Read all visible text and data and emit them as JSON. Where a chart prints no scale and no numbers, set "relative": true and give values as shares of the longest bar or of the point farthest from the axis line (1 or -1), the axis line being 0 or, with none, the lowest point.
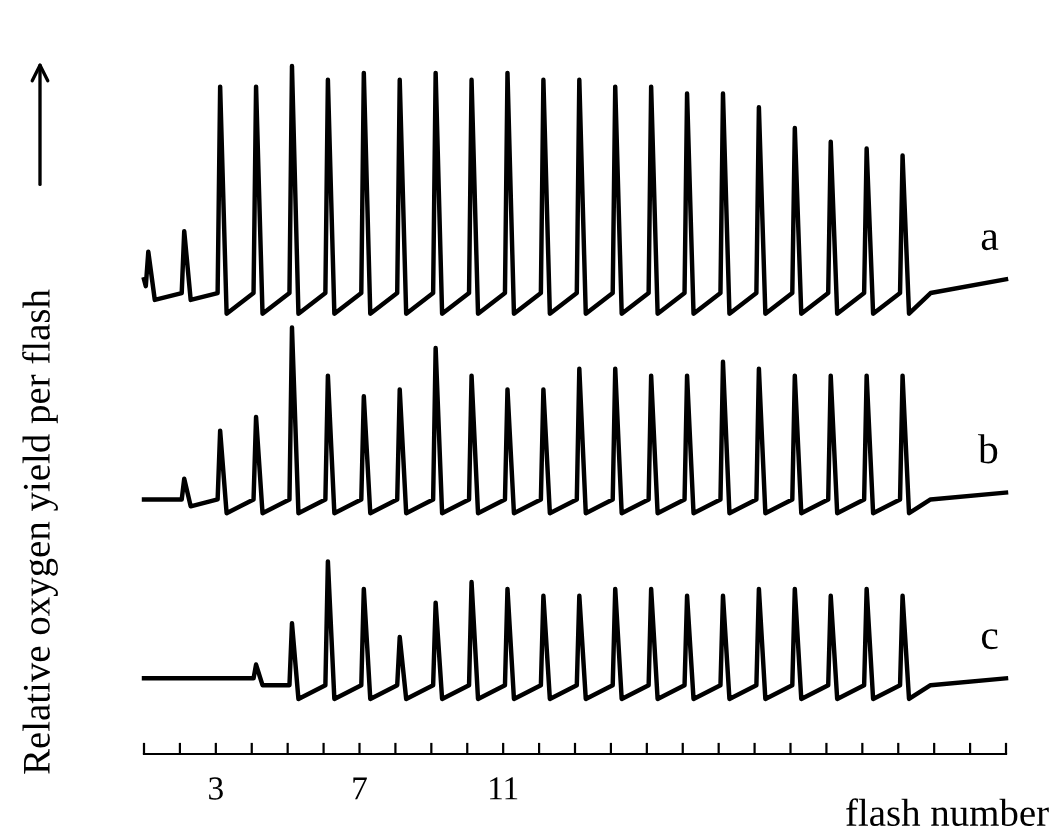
{
  "chart_data": {
    "type": "line",
    "relative": true,
    "ylabel": "Relative oxygen yield per flash",
    "xlabel": "flash number",
    "xlim": [
      1,
      25
    ],
    "xticks": [
      {
        "value": 1,
        "label": null
      },
      {
        "value": 2,
        "label": null
      },
      3,
      {
        "value": 4,
        "label": null
      },
      {
        "value": 5,
        "label": null
      },
      {
        "value": 6,
        "label": null
      },
      7,
      {
        "value": 8,
        "label": null
      },
      {
        "value": 9,
        "label": null
      },
      {
        "value": 10,
        "label": null
      },
      11,
      {
        "value": 12,
        "label": null
      },
      {
        "value": 13,
        "label": null
      },
      {
        "value": 14,
        "label": null
      },
      {
        "value": 15,
        "label": null
      },
      {
        "value": 16,
        "label": null
      },
      {
        "value": 17,
        "label": null
      },
      {
        "value": 18,
        "label": null
      },
      {
        "value": 19,
        "label": null
      },
      {
        "value": 20,
        "label": null
      },
      {
        "value": 21,
        "label": null
      },
      {
        "value": 22,
        "label": null
      },
      {
        "value": 23,
        "label": null
      },
      {
        "value": 24,
        "label": null
      },
      {
        "value": 25,
        "label": null
      }
    ],
    "grid": false,
    "legend": false,
    "marker": "none",
    "line_style": "solid",
    "series": [
      {
        "name": "a",
        "color": "#000000",
        "x": [
          1.0,
          1.05,
          1.12,
          1.3,
          2.05,
          2.12,
          2.3,
          3.05,
          3.12,
          3.3,
          4.05,
          4.12,
          4.3,
          5.05,
          5.12,
          5.3,
          6.05,
          6.12,
          6.3,
          7.05,
          7.12,
          7.3,
          8.05,
          8.12,
          8.3,
          9.05,
          9.12,
          9.3,
          10.05,
          10.12,
          10.3,
          11.05,
          11.12,
          11.3,
          12.05,
          12.12,
          12.3,
          13.05,
          13.12,
          13.3,
          14.05,
          14.12,
          14.3,
          15.05,
          15.12,
          15.3,
          16.05,
          16.12,
          16.3,
          17.05,
          17.12,
          17.3,
          18.05,
          18.12,
          18.3,
          19.05,
          19.12,
          19.3,
          20.05,
          20.12,
          20.3,
          21.05,
          21.12,
          21.3,
          22.05,
          22.12,
          22.3,
          22.9,
          25.0
        ],
        "values": [
          0.69,
          0.68,
          0.73,
          0.66,
          0.67,
          0.76,
          0.66,
          0.67,
          0.97,
          0.64,
          0.67,
          0.97,
          0.64,
          0.67,
          1.0,
          0.64,
          0.67,
          0.98,
          0.64,
          0.67,
          0.99,
          0.64,
          0.67,
          0.98,
          0.64,
          0.67,
          0.99,
          0.64,
          0.67,
          0.98,
          0.64,
          0.67,
          0.99,
          0.64,
          0.67,
          0.98,
          0.64,
          0.67,
          0.98,
          0.64,
          0.67,
          0.97,
          0.64,
          0.67,
          0.97,
          0.64,
          0.67,
          0.96,
          0.64,
          0.67,
          0.96,
          0.64,
          0.67,
          0.94,
          0.64,
          0.67,
          0.91,
          0.64,
          0.67,
          0.89,
          0.64,
          0.67,
          0.88,
          0.64,
          0.67,
          0.87,
          0.64,
          0.67,
          0.69
        ]
      },
      {
        "name": "b",
        "color": "#000000",
        "x": [
          1.0,
          2.05,
          2.12,
          2.3,
          3.05,
          3.12,
          3.3,
          4.05,
          4.12,
          4.3,
          5.05,
          5.12,
          5.3,
          6.05,
          6.12,
          6.3,
          7.05,
          7.12,
          7.3,
          8.05,
          8.12,
          8.3,
          9.05,
          9.12,
          9.3,
          10.05,
          10.12,
          10.3,
          11.05,
          11.12,
          11.3,
          12.05,
          12.12,
          12.3,
          13.05,
          13.12,
          13.3,
          14.05,
          14.12,
          14.3,
          15.05,
          15.12,
          15.3,
          16.05,
          16.12,
          16.3,
          17.05,
          17.12,
          17.3,
          18.05,
          18.12,
          18.3,
          19.05,
          19.12,
          19.3,
          20.05,
          20.12,
          20.3,
          21.05,
          21.12,
          21.3,
          22.05,
          22.12,
          22.3,
          22.9,
          25.0
        ],
        "values": [
          0.37,
          0.37,
          0.4,
          0.36,
          0.37,
          0.47,
          0.35,
          0.37,
          0.49,
          0.35,
          0.37,
          0.62,
          0.35,
          0.37,
          0.55,
          0.35,
          0.37,
          0.52,
          0.35,
          0.37,
          0.53,
          0.35,
          0.37,
          0.59,
          0.35,
          0.37,
          0.55,
          0.35,
          0.37,
          0.53,
          0.35,
          0.37,
          0.53,
          0.35,
          0.37,
          0.56,
          0.35,
          0.37,
          0.56,
          0.35,
          0.37,
          0.55,
          0.35,
          0.37,
          0.55,
          0.35,
          0.37,
          0.57,
          0.35,
          0.37,
          0.56,
          0.35,
          0.37,
          0.55,
          0.35,
          0.37,
          0.55,
          0.35,
          0.37,
          0.55,
          0.35,
          0.37,
          0.55,
          0.35,
          0.37,
          0.38
        ]
      },
      {
        "name": "c",
        "color": "#000000",
        "x": [
          1.0,
          4.0,
          4.05,
          4.12,
          4.3,
          5.05,
          5.12,
          5.3,
          6.05,
          6.12,
          6.3,
          7.05,
          7.12,
          7.3,
          8.05,
          8.12,
          8.3,
          9.05,
          9.12,
          9.3,
          10.05,
          10.12,
          10.3,
          11.05,
          11.12,
          11.3,
          12.05,
          12.12,
          12.3,
          13.05,
          13.12,
          13.3,
          14.05,
          14.12,
          14.3,
          15.05,
          15.12,
          15.3,
          16.05,
          16.12,
          16.3,
          17.05,
          17.12,
          17.3,
          18.05,
          18.12,
          18.3,
          19.05,
          19.12,
          19.3,
          20.05,
          20.12,
          20.3,
          21.05,
          21.12,
          21.3,
          22.05,
          22.12,
          22.3,
          22.9,
          25.0
        ],
        "values": [
          0.11,
          0.11,
          0.11,
          0.13,
          0.1,
          0.1,
          0.19,
          0.08,
          0.1,
          0.28,
          0.08,
          0.1,
          0.24,
          0.08,
          0.1,
          0.17,
          0.08,
          0.1,
          0.22,
          0.08,
          0.1,
          0.25,
          0.08,
          0.1,
          0.24,
          0.08,
          0.1,
          0.23,
          0.08,
          0.1,
          0.23,
          0.08,
          0.1,
          0.24,
          0.08,
          0.1,
          0.24,
          0.08,
          0.1,
          0.23,
          0.08,
          0.1,
          0.23,
          0.08,
          0.1,
          0.24,
          0.08,
          0.1,
          0.24,
          0.08,
          0.1,
          0.23,
          0.08,
          0.1,
          0.24,
          0.08,
          0.1,
          0.23,
          0.08,
          0.1,
          0.11
        ]
      }
    ]
  }
}
